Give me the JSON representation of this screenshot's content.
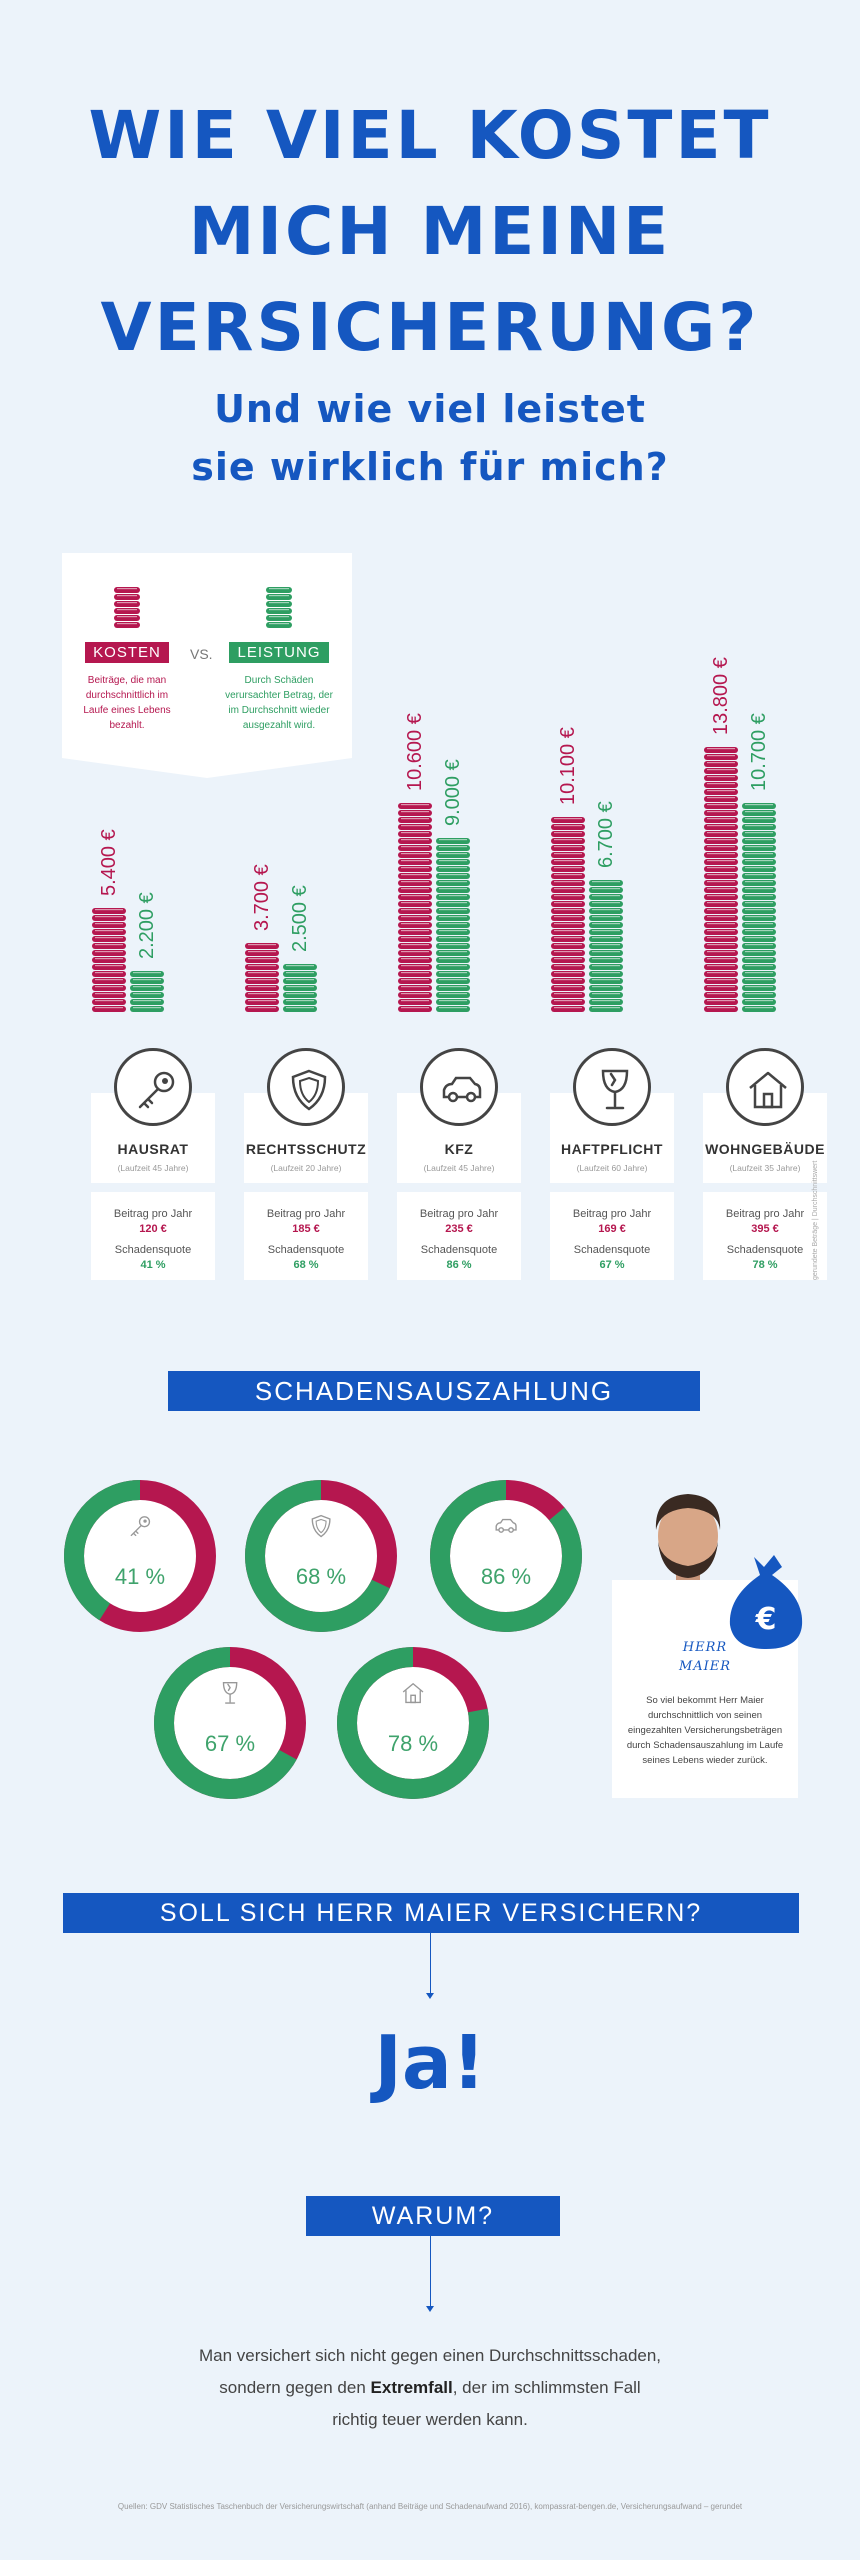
{
  "title_lines": [
    "WIE VIEL KOSTET",
    "MICH MEINE",
    "VERSICHERUNG?"
  ],
  "subtitle_lines": [
    "Und wie viel leistet",
    "sie wirklich für mich?"
  ],
  "legend": {
    "kosten_label": "KOSTEN",
    "kosten_desc": "Beiträge, die man durchschnittlich im Laufe eines Lebens bezahlt.",
    "vs": "VS.",
    "leistung_label": "LEISTUNG",
    "leistung_desc": "Durch Schäden verursachter Betrag, der im Durchschnitt wieder ausgezahlt wird."
  },
  "colors": {
    "kosten": "#b5174f",
    "leistung": "#2e9e62",
    "brand": "#1557c0"
  },
  "insurances": [
    {
      "name": "HAUSRAT",
      "laufzeit": "(Laufzeit 45 Jahre)",
      "kosten": "5.400 €",
      "leistung": "2.200 €",
      "kosten_value": 5400,
      "leistung_value": 2200,
      "beitrag_label": "Beitrag pro Jahr",
      "beitrag": "120 €",
      "quote_label": "Schadensquote",
      "quote": "41 %",
      "quote_value": 41,
      "icon": "key-icon"
    },
    {
      "name": "RECHTSSCHUTZ",
      "laufzeit": "(Laufzeit 20 Jahre)",
      "kosten": "3.700 €",
      "leistung": "2.500 €",
      "kosten_value": 3700,
      "leistung_value": 2500,
      "beitrag_label": "Beitrag pro Jahr",
      "beitrag": "185 €",
      "quote_label": "Schadensquote",
      "quote": "68 %",
      "quote_value": 68,
      "icon": "shield-icon"
    },
    {
      "name": "KFZ",
      "laufzeit": "(Laufzeit 45 Jahre)",
      "kosten": "10.600 €",
      "leistung": "9.000 €",
      "kosten_value": 10600,
      "leistung_value": 9000,
      "beitrag_label": "Beitrag pro Jahr",
      "beitrag": "235 €",
      "quote_label": "Schadensquote",
      "quote": "86 %",
      "quote_value": 86,
      "icon": "car-icon"
    },
    {
      "name": "HAFTPFLICHT",
      "laufzeit": "(Laufzeit 60 Jahre)",
      "kosten": "10.100 €",
      "leistung": "6.700 €",
      "kosten_value": 10100,
      "leistung_value": 6700,
      "beitrag_label": "Beitrag pro Jahr",
      "beitrag": "169 €",
      "quote_label": "Schadensquote",
      "quote": "67 %",
      "quote_value": 67,
      "icon": "broken-glass-icon"
    },
    {
      "name": "WOHNGEBÄUDE",
      "laufzeit": "(Laufzeit 35 Jahre)",
      "kosten": "13.800 €",
      "leistung": "10.700 €",
      "kosten_value": 13800,
      "leistung_value": 10700,
      "beitrag_label": "Beitrag pro Jahr",
      "beitrag": "395 €",
      "quote_label": "Schadensquote",
      "quote": "78 %",
      "quote_value": 78,
      "icon": "house-icon"
    }
  ],
  "side_note": "gerundete Beträge | Durchschnittswert",
  "schadensauszahlung_title": "SCHADENSAUSZAHLUNG",
  "maier": {
    "name_line1": "HERR",
    "name_line2": "MAIER",
    "text": "So viel bekommt Herr Maier durchschnittlich von seinen eingezahlten Versicherungsbeträgen durch Schadensauszahlung im Laufe seines Lebens wieder zurück.",
    "bag_symbol": "€"
  },
  "question_banner": "SOLL SICH HERR MAIER VERSICHERN?",
  "answer": "Ja!",
  "warum_banner": "WARUM?",
  "closing": {
    "line1": "Man versichert sich nicht gegen einen Durchschnittsschaden,",
    "line2_pre": "sondern gegen den ",
    "line2_bold": "Extremfall",
    "line2_post": ", der im schlimmsten Fall",
    "line3": "richtig teuer werden kann."
  },
  "source": "Quellen: GDV Statistisches Taschenbuch der Versicherungswirtschaft (anhand Beiträge und Schadenaufwand 2016), kompassrat-bengen.de, Versicherungsaufwand – gerundet"
}
